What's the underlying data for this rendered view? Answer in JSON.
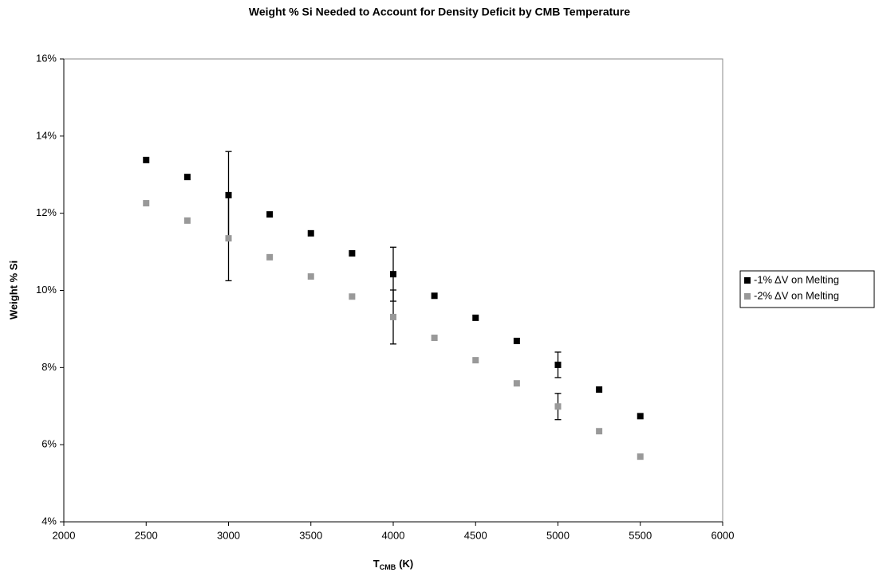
{
  "chart_data": {
    "type": "scatter",
    "title": "Weight % Si Needed to Account for Density Deficit by CMB Temperature",
    "x_label": [
      "T",
      "CMB",
      "(K)"
    ],
    "y_label": "Weight % Si",
    "x": [
      2500,
      2750,
      3000,
      3250,
      3500,
      3750,
      4000,
      4250,
      4500,
      4750,
      5000,
      5250,
      5500
    ],
    "series": [
      {
        "name": "-1% ΔV on Melting",
        "color": "#000000",
        "values": [
          13.38,
          12.94,
          12.47,
          11.97,
          11.48,
          10.96,
          10.42,
          9.86,
          9.29,
          8.69,
          8.07,
          7.43,
          6.74
        ],
        "errors": [
          null,
          null,
          1.13,
          null,
          null,
          null,
          0.7,
          null,
          null,
          null,
          0.33,
          null,
          null
        ]
      },
      {
        "name": "-2% ΔV on Melting",
        "color": "#999999",
        "values": [
          12.26,
          11.81,
          11.35,
          10.86,
          10.36,
          9.84,
          9.31,
          8.77,
          8.19,
          7.59,
          6.99,
          6.35,
          5.69
        ],
        "errors": [
          null,
          null,
          1.1,
          null,
          null,
          null,
          0.7,
          null,
          null,
          null,
          0.34,
          null,
          null
        ]
      }
    ],
    "xlim": [
      2000,
      6000
    ],
    "xticks": [
      2000,
      2500,
      3000,
      3500,
      4000,
      4500,
      5000,
      5500,
      6000
    ],
    "ylim": [
      4,
      16
    ],
    "yticks": [
      {
        "value": 4,
        "label": "4%"
      },
      {
        "value": 6,
        "label": "6%"
      },
      {
        "value": 8,
        "label": "8%"
      },
      {
        "value": 10,
        "label": "10%"
      },
      {
        "value": 12,
        "label": "12%"
      },
      {
        "value": 14,
        "label": "14%"
      },
      {
        "value": 16,
        "label": "16%"
      }
    ],
    "grid": false,
    "legend": "right"
  }
}
